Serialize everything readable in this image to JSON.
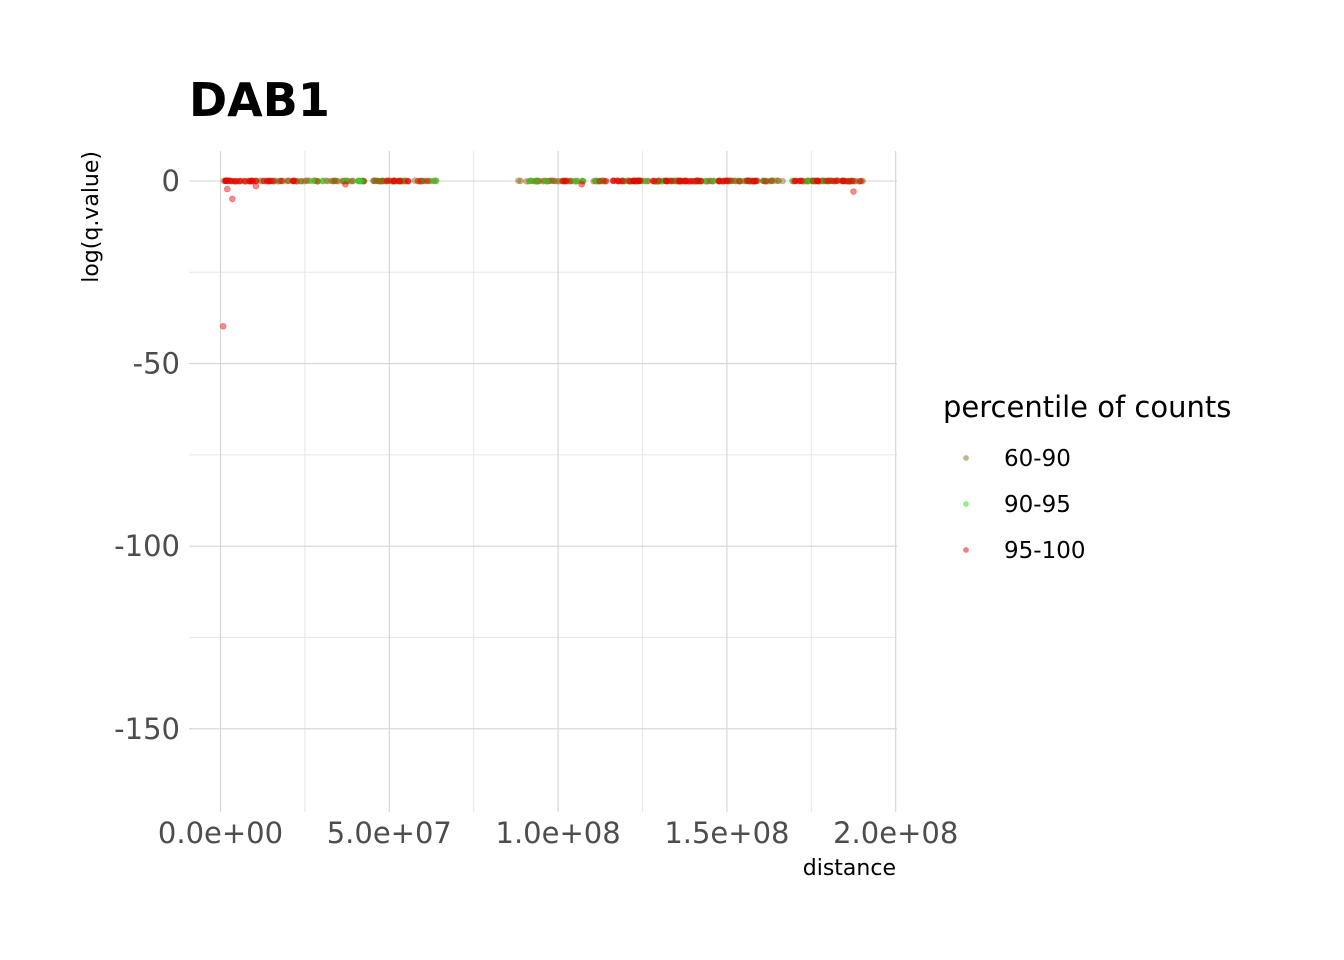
{
  "chart_data": {
    "type": "scatter",
    "title": "DAB1",
    "xlabel": "distance",
    "ylabel": "log(q.value)",
    "xlim": [
      -5000000,
      200000000
    ],
    "ylim": [
      -172,
      8
    ],
    "x_ticks": [
      {
        "value": 0,
        "label": "0.0e+00"
      },
      {
        "value": 50000000,
        "label": "5.0e+07"
      },
      {
        "value": 100000000,
        "label": "1.0e+08"
      },
      {
        "value": 150000000,
        "label": "1.5e+08"
      },
      {
        "value": 200000000,
        "label": "2.0e+08"
      }
    ],
    "x_minor_ticks": [
      25000000,
      75000000,
      125000000,
      175000000
    ],
    "y_ticks": [
      {
        "value": 0,
        "label": "0"
      },
      {
        "value": -50,
        "label": "-50"
      },
      {
        "value": -100,
        "label": "-100"
      },
      {
        "value": -150,
        "label": "-150"
      }
    ],
    "y_minor_ticks": [
      -25,
      -75,
      -125
    ],
    "grid": true,
    "legend": {
      "title": "percentile of counts",
      "position": "right"
    },
    "series": [
      {
        "name": "60-90",
        "color": "#8b6914",
        "x_ranges": [
          [
            0,
            64000000
          ],
          [
            88000000,
            191000000
          ]
        ],
        "y": 0,
        "n_points": 320,
        "points": []
      },
      {
        "name": "90-95",
        "color": "#22dd22",
        "x_ranges": [
          [
            27000000,
            47000000
          ],
          [
            55000000,
            64000000
          ],
          [
            90000000,
            190000000
          ]
        ],
        "y": 0,
        "n_points": 45,
        "points": []
      },
      {
        "name": "95-100",
        "color": "#ee0000",
        "x_ranges": [
          [
            0,
            22000000
          ],
          [
            49000000,
            62000000
          ],
          [
            100000000,
            190000000
          ]
        ],
        "y": 0,
        "n_points": 110,
        "points": [
          {
            "x": 800000,
            "y": -39.8
          },
          {
            "x": 2000000,
            "y": -2.2
          },
          {
            "x": 3500000,
            "y": -4.9
          },
          {
            "x": 10500000,
            "y": -1.4
          },
          {
            "x": 37000000,
            "y": -0.9
          },
          {
            "x": 107000000,
            "y": -0.9
          },
          {
            "x": 187500000,
            "y": -2.9
          }
        ]
      }
    ]
  }
}
